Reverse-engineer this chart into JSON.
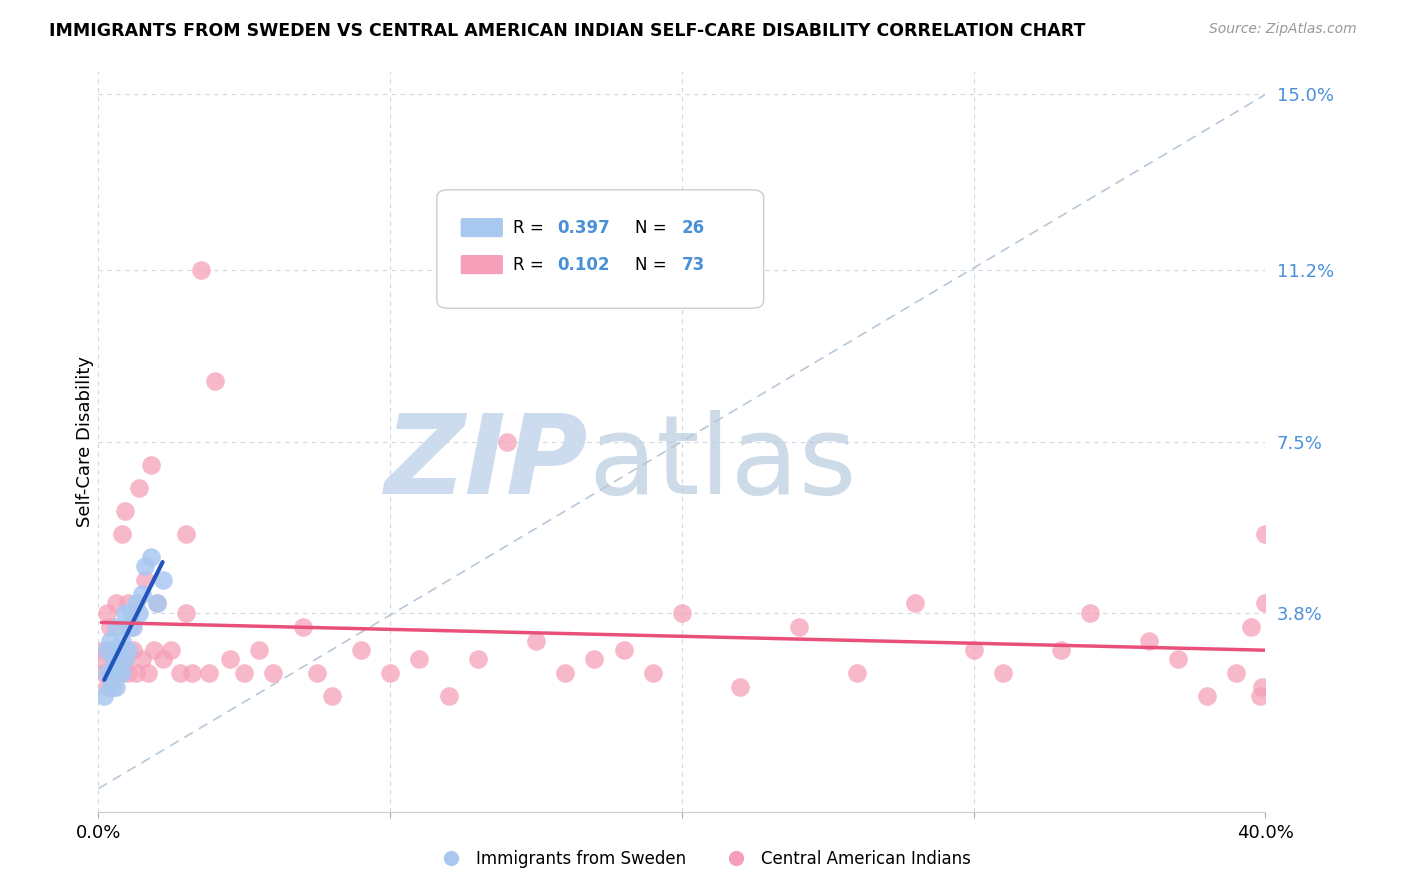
{
  "title": "IMMIGRANTS FROM SWEDEN VS CENTRAL AMERICAN INDIAN SELF-CARE DISABILITY CORRELATION CHART",
  "source": "Source: ZipAtlas.com",
  "ylabel": "Self-Care Disability",
  "xlim": [
    0.0,
    0.4
  ],
  "ylim": [
    -0.005,
    0.155
  ],
  "r_sweden": 0.397,
  "n_sweden": 26,
  "r_central": 0.102,
  "n_central": 73,
  "sweden_color": "#a8c8f0",
  "central_color": "#f5a0b8",
  "sweden_line_color": "#2255bb",
  "central_line_color": "#e8507a",
  "tick_label_color": "#4a90d9",
  "watermark_zip_color": "#c8d8ee",
  "watermark_atlas_color": "#b8cce0",
  "legend_label_sweden": "Immigrants from Sweden",
  "legend_label_central": "Central American Indians",
  "sweden_x": [
    0.002,
    0.003,
    0.003,
    0.004,
    0.004,
    0.005,
    0.005,
    0.006,
    0.006,
    0.007,
    0.007,
    0.008,
    0.008,
    0.009,
    0.009,
    0.01,
    0.01,
    0.011,
    0.012,
    0.013,
    0.014,
    0.015,
    0.016,
    0.018,
    0.02,
    0.022
  ],
  "sweden_y": [
    0.02,
    0.025,
    0.03,
    0.022,
    0.032,
    0.025,
    0.028,
    0.022,
    0.035,
    0.026,
    0.03,
    0.025,
    0.032,
    0.028,
    0.038,
    0.03,
    0.035,
    0.038,
    0.035,
    0.04,
    0.038,
    0.042,
    0.048,
    0.05,
    0.04,
    0.045
  ],
  "central_x": [
    0.001,
    0.002,
    0.002,
    0.003,
    0.003,
    0.004,
    0.004,
    0.005,
    0.005,
    0.006,
    0.006,
    0.007,
    0.008,
    0.008,
    0.009,
    0.009,
    0.01,
    0.01,
    0.011,
    0.012,
    0.013,
    0.014,
    0.015,
    0.016,
    0.017,
    0.018,
    0.019,
    0.02,
    0.022,
    0.025,
    0.028,
    0.03,
    0.03,
    0.032,
    0.035,
    0.038,
    0.04,
    0.045,
    0.05,
    0.055,
    0.06,
    0.07,
    0.075,
    0.08,
    0.09,
    0.1,
    0.11,
    0.12,
    0.13,
    0.14,
    0.15,
    0.16,
    0.17,
    0.18,
    0.19,
    0.2,
    0.22,
    0.24,
    0.26,
    0.28,
    0.3,
    0.31,
    0.33,
    0.34,
    0.36,
    0.37,
    0.38,
    0.39,
    0.395,
    0.398,
    0.399,
    0.4,
    0.4
  ],
  "central_y": [
    0.028,
    0.025,
    0.03,
    0.022,
    0.038,
    0.025,
    0.035,
    0.022,
    0.03,
    0.025,
    0.04,
    0.028,
    0.025,
    0.055,
    0.028,
    0.06,
    0.025,
    0.04,
    0.035,
    0.03,
    0.025,
    0.065,
    0.028,
    0.045,
    0.025,
    0.07,
    0.03,
    0.04,
    0.028,
    0.03,
    0.025,
    0.055,
    0.038,
    0.025,
    0.112,
    0.025,
    0.088,
    0.028,
    0.025,
    0.03,
    0.025,
    0.035,
    0.025,
    0.02,
    0.03,
    0.025,
    0.028,
    0.02,
    0.028,
    0.075,
    0.032,
    0.025,
    0.028,
    0.03,
    0.025,
    0.038,
    0.022,
    0.035,
    0.025,
    0.04,
    0.03,
    0.025,
    0.03,
    0.038,
    0.032,
    0.028,
    0.02,
    0.025,
    0.035,
    0.02,
    0.022,
    0.04,
    0.055
  ]
}
